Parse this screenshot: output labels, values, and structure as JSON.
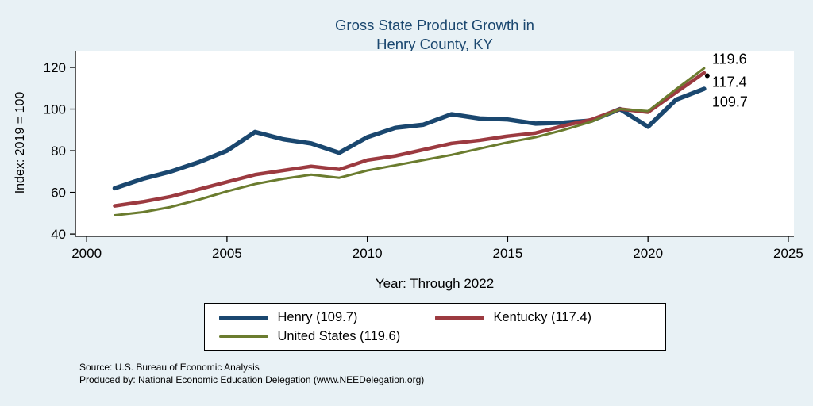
{
  "title": {
    "line1": "Gross State Product Growth in",
    "line2": "Henry County, KY"
  },
  "axes": {
    "y_label": "Index: 2019 = 100",
    "x_label": "Year: Through 2022",
    "y_ticks": [
      40,
      60,
      80,
      100,
      120
    ],
    "x_ticks": [
      2000,
      2005,
      2010,
      2015,
      2020,
      2025
    ]
  },
  "chart_data": {
    "type": "line",
    "title": "Gross State Product Growth in Henry County, KY",
    "xlabel": "Year: Through 2022",
    "ylabel": "Index: 2019 = 100",
    "xlim": [
      1999.6,
      2025.2
    ],
    "ylim": [
      38.9,
      128
    ],
    "grid": false,
    "legend_position": "bottom",
    "x": [
      2001,
      2002,
      2003,
      2004,
      2005,
      2006,
      2007,
      2008,
      2009,
      2010,
      2011,
      2012,
      2013,
      2014,
      2015,
      2016,
      2017,
      2018,
      2019,
      2020,
      2021,
      2022
    ],
    "series": [
      {
        "name": "Henry",
        "color": "#1a476f",
        "width": 5.5,
        "values": [
          62,
          66.5,
          70,
          74.5,
          80,
          89,
          85.5,
          83.5,
          79,
          86.5,
          91,
          92.5,
          97.5,
          95.5,
          95,
          93,
          93.5,
          94.5,
          100,
          91.5,
          104.5,
          109.7
        ]
      },
      {
        "name": "Kentucky",
        "color": "#9c3a40",
        "width": 4.5,
        "values": [
          53.5,
          55.5,
          58,
          61.5,
          65,
          68.5,
          70.5,
          72.5,
          71,
          75.5,
          77.5,
          80.5,
          83.5,
          85,
          87,
          88.5,
          92,
          95,
          100,
          98.5,
          108,
          117.4
        ]
      },
      {
        "name": "United States",
        "color": "#6b7c2f",
        "width": 3,
        "values": [
          49,
          50.5,
          53,
          56.5,
          60.5,
          64,
          66.5,
          68.5,
          67,
          70.5,
          73,
          75.5,
          78,
          81,
          84,
          86.5,
          90,
          94,
          100,
          99,
          109.5,
          119.6
        ]
      }
    ],
    "end_labels": [
      {
        "text": "119.6",
        "value": 124
      },
      {
        "text": "117.4",
        "value": 113
      },
      {
        "text": "109.7",
        "value": 103.5
      }
    ]
  },
  "legend": {
    "items": [
      {
        "label": "Henry  (109.7)",
        "color": "#1a476f",
        "thickness": 6
      },
      {
        "label": "Kentucky (117.4)",
        "color": "#9c3a40",
        "thickness": 6
      },
      {
        "label": "United States (119.6)",
        "color": "#6b7c2f",
        "thickness": 3.5
      }
    ]
  },
  "footer": {
    "line1": "Source: U.S. Bureau of Economic Analysis",
    "line2": "Produced by: National Economic Education Delegation (www.NEEDelegation.org)"
  }
}
